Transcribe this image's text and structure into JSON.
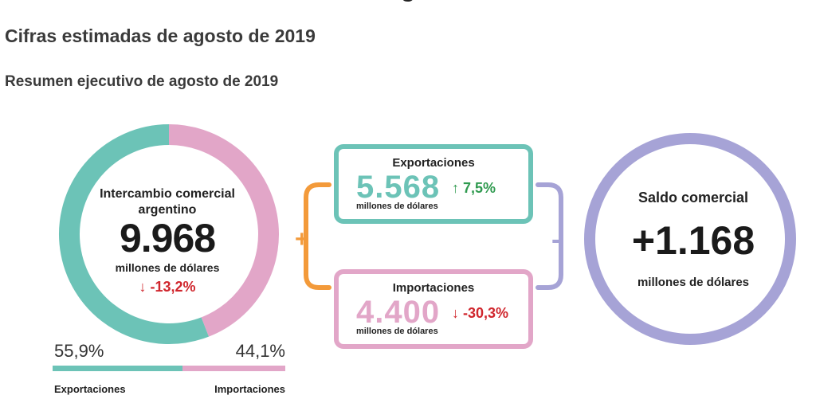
{
  "header": {
    "clipped_title": "g",
    "title": "Cifras estimadas de agosto de 2019",
    "subtitle": "Resumen ejecutivo de agosto de 2019"
  },
  "intercambio": {
    "label": "Intercambio comercial argentino",
    "value": "9.968",
    "unit": "millones de dólares",
    "change": "-13,2%",
    "change_icon": "arrow-down-icon"
  },
  "share": {
    "exports_pct": "55,9%",
    "imports_pct": "44,1%",
    "exports_fraction": 0.559,
    "exports_label": "Exportaciones",
    "imports_label": "Importaciones"
  },
  "exportaciones": {
    "title": "Exportaciones",
    "value": "5.568",
    "unit": "millones de dólares",
    "change": "7,5%",
    "change_icon": "arrow-up-icon"
  },
  "importaciones": {
    "title": "Importaciones",
    "value": "4.400",
    "unit": "millones de dólares",
    "change": "-30,3%",
    "change_icon": "arrow-down-icon"
  },
  "operators": {
    "plus": "+",
    "minus": "-"
  },
  "saldo": {
    "label": "Saldo comercial",
    "value": "+1.168",
    "unit": "millones de dólares"
  },
  "colors": {
    "exports": "#6cc3b7",
    "imports": "#e2a6c8",
    "balance": "#a6a3d6",
    "plus": "#f39a3a",
    "positive": "#2f9a4f",
    "negative": "#d0262d"
  }
}
